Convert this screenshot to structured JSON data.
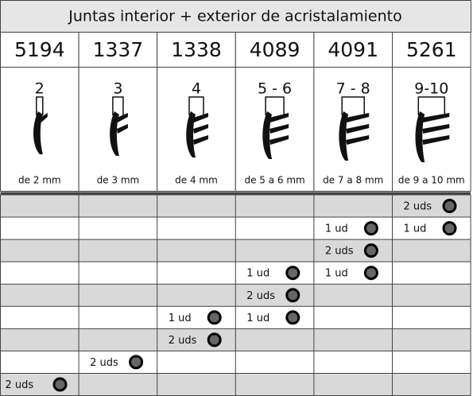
{
  "header": {
    "title": "Juntas interior + exterior de acristalamiento"
  },
  "columns": [
    {
      "code": "5194",
      "gap": "2",
      "caption": "de 2 mm"
    },
    {
      "code": "1337",
      "gap": "3",
      "caption": "de 3 mm"
    },
    {
      "code": "1338",
      "gap": "4",
      "caption": "de 4 mm"
    },
    {
      "code": "4089",
      "gap": "5 - 6",
      "caption": "de 5 a 6 mm"
    },
    {
      "code": "4091",
      "gap": "7 - 8",
      "caption": "de 7 a 8 mm"
    },
    {
      "code": "5261",
      "gap": "9-10",
      "caption": "de 9 a 10 mm"
    }
  ],
  "rows": [
    [
      null,
      null,
      null,
      null,
      null,
      "2 uds"
    ],
    [
      null,
      null,
      null,
      null,
      "1 ud",
      "1 ud"
    ],
    [
      null,
      null,
      null,
      null,
      "2 uds",
      null
    ],
    [
      null,
      null,
      null,
      "1 ud",
      "1 ud",
      null
    ],
    [
      null,
      null,
      null,
      "2 uds",
      null,
      null
    ],
    [
      null,
      null,
      "1 ud",
      "1 ud",
      null,
      null
    ],
    [
      null,
      null,
      "2 uds",
      null,
      null,
      null
    ],
    [
      null,
      "2 uds",
      null,
      null,
      null,
      null
    ],
    [
      "2 uds",
      null,
      null,
      null,
      null,
      null
    ]
  ]
}
